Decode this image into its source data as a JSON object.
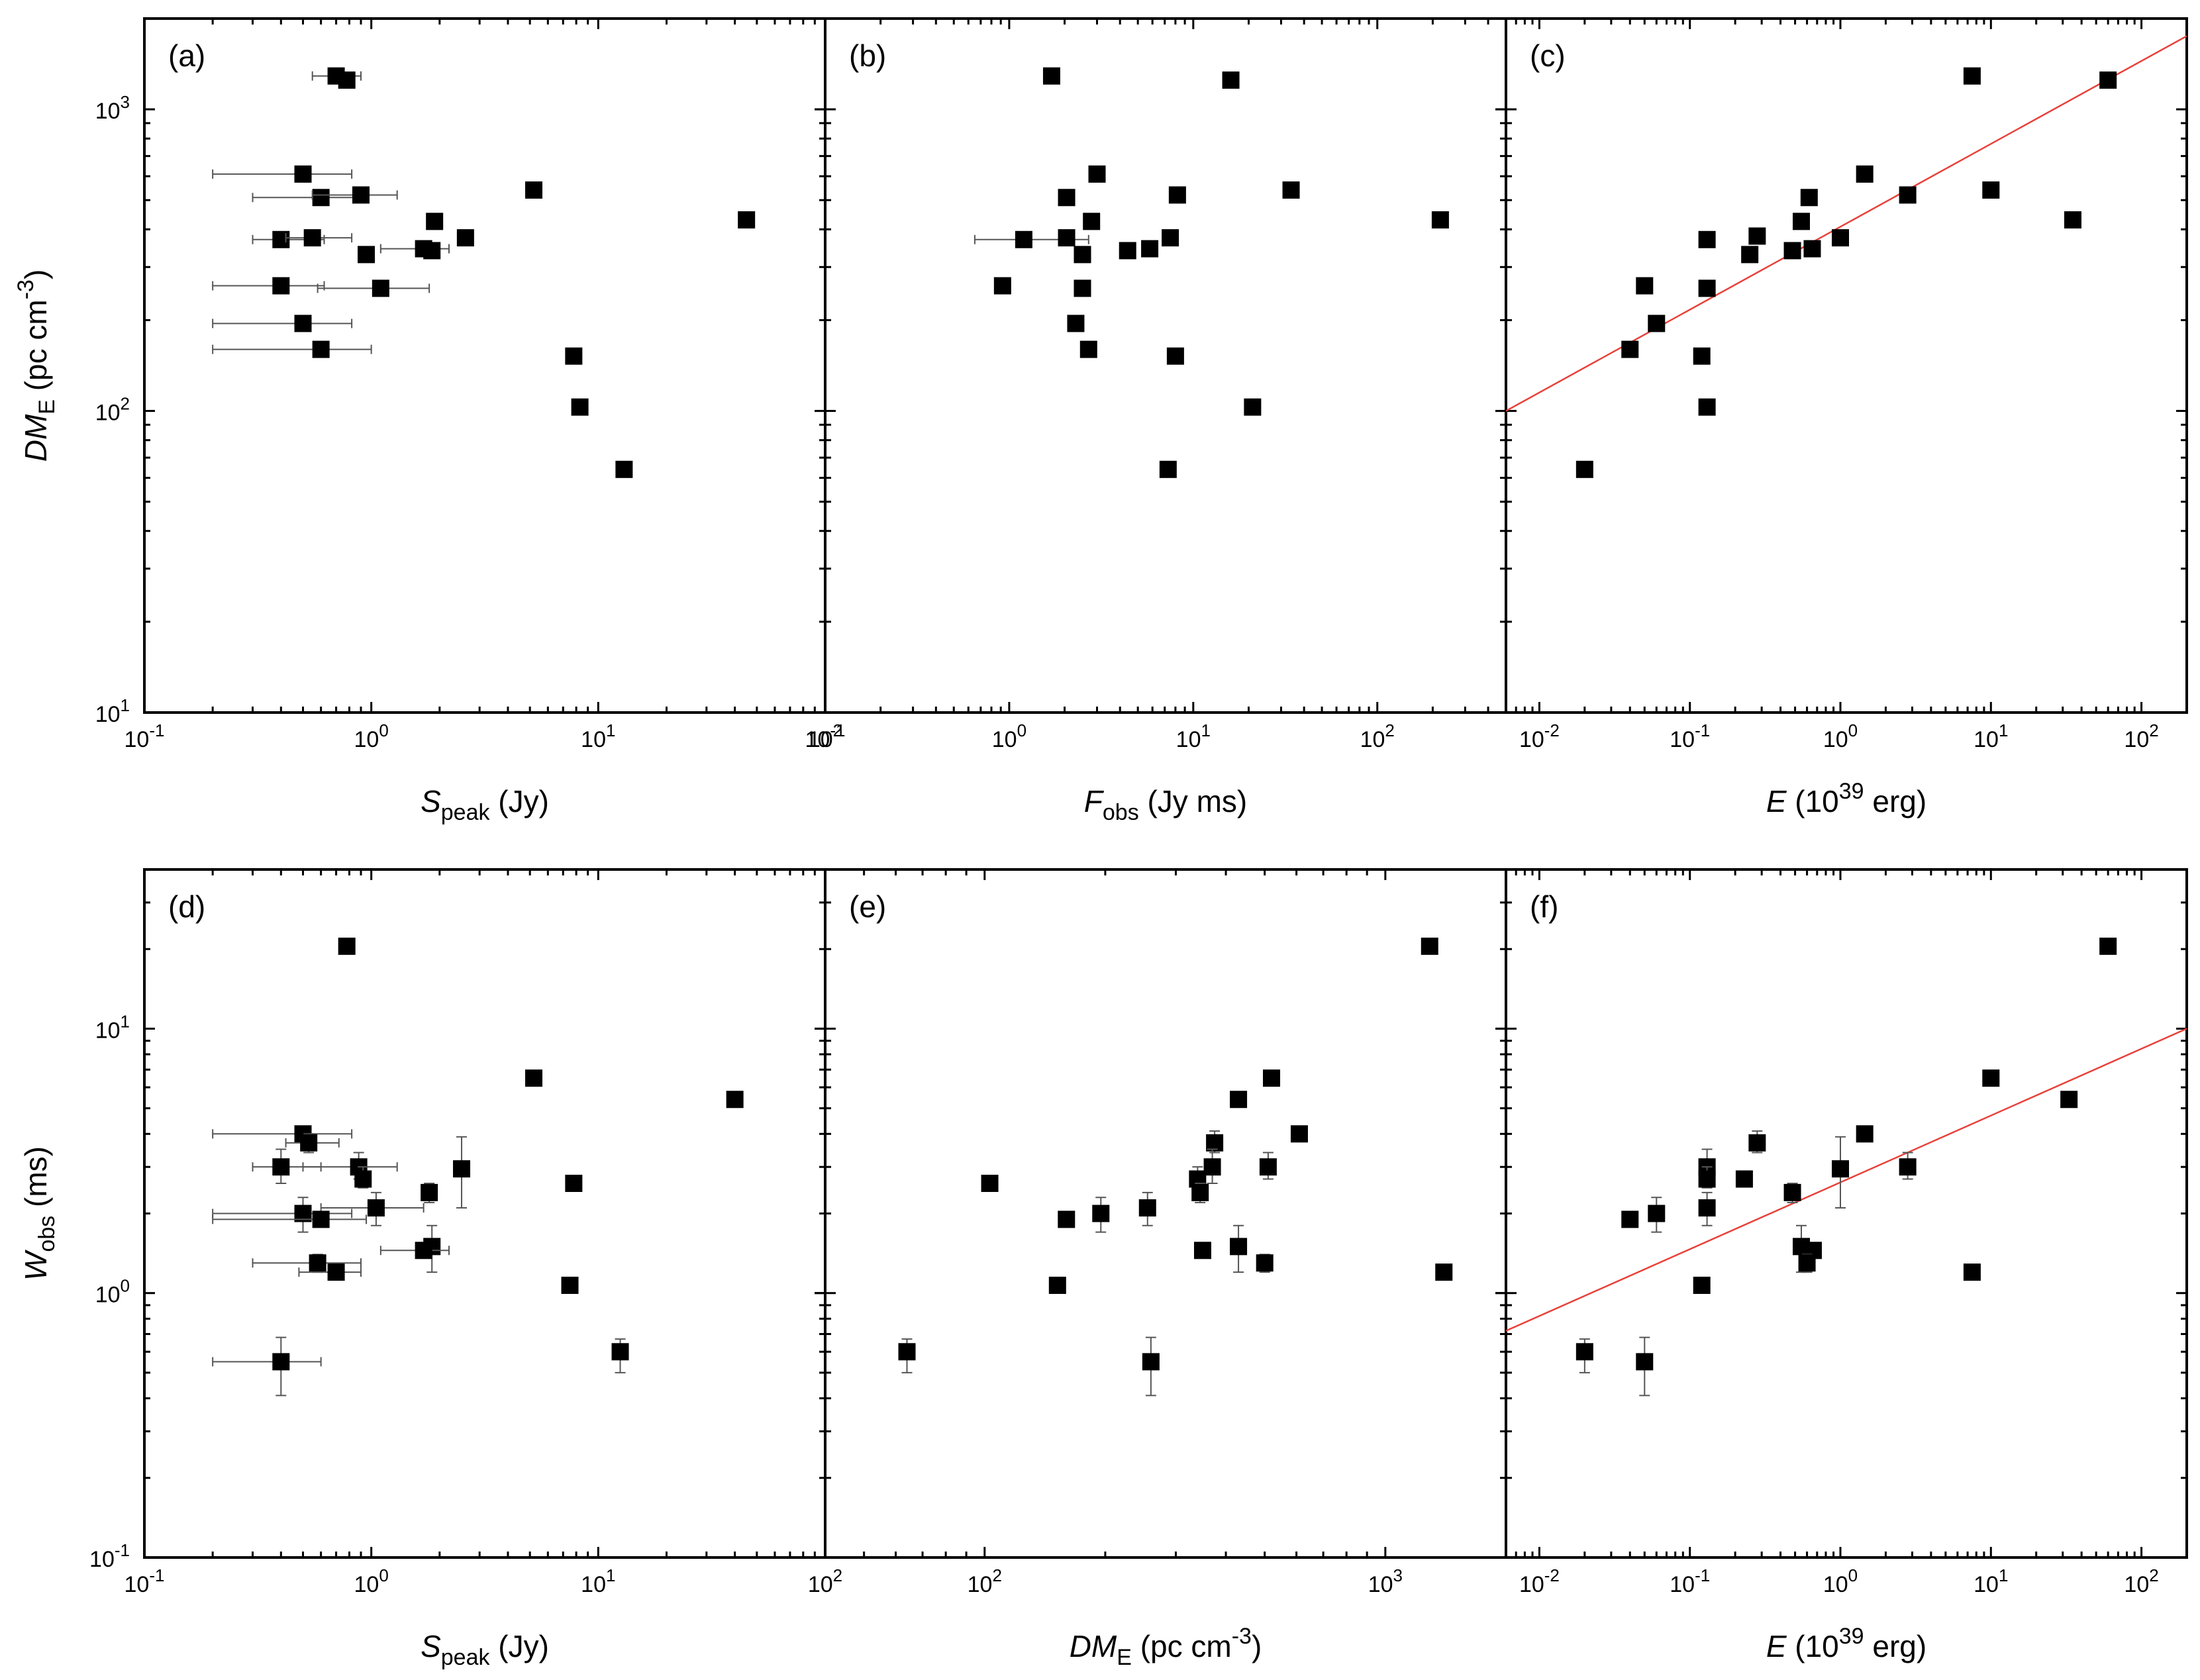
{
  "chart_data": [
    {
      "id": "a",
      "panel_label": "(a)",
      "type": "scatter",
      "xscale": "log",
      "yscale": "log",
      "xlim": [
        0.1,
        100
      ],
      "ylim": [
        10,
        2000
      ],
      "xlabel": {
        "sym": "S",
        "sub": "peak",
        "unit": " (Jy)"
      },
      "ylabel": {
        "sym": "DM",
        "sub": "E",
        "unit": " (pc cm",
        "sup": "-3",
        "close": ")"
      },
      "xticks": [
        {
          "b": "10",
          "e": "-1"
        },
        {
          "b": "10",
          "e": "0"
        },
        {
          "b": "10",
          "e": "1"
        },
        {
          "b": "10",
          "e": "2"
        }
      ],
      "yticks": [
        {
          "b": "10",
          "e": "1"
        },
        {
          "b": "10",
          "e": "2"
        },
        {
          "b": "10",
          "e": "3"
        }
      ],
      "points": [
        {
          "x": 0.7,
          "y": 1290,
          "xerr": [
            0.55,
            0.9
          ]
        },
        {
          "x": 0.78,
          "y": 1250
        },
        {
          "x": 0.5,
          "y": 610,
          "xerr": [
            0.2,
            0.82
          ]
        },
        {
          "x": 0.6,
          "y": 510,
          "xerr": [
            0.3,
            0.9
          ]
        },
        {
          "x": 0.9,
          "y": 520,
          "xerr": [
            0.55,
            1.3
          ]
        },
        {
          "x": 5.2,
          "y": 540
        },
        {
          "x": 1.9,
          "y": 425
        },
        {
          "x": 45,
          "y": 430
        },
        {
          "x": 0.4,
          "y": 370,
          "xerr": [
            0.3,
            0.62
          ]
        },
        {
          "x": 0.55,
          "y": 375,
          "xerr": [
            0.42,
            0.82
          ]
        },
        {
          "x": 2.6,
          "y": 375
        },
        {
          "x": 1.7,
          "y": 345,
          "xerr": [
            1.1,
            2.2
          ]
        },
        {
          "x": 1.85,
          "y": 340
        },
        {
          "x": 0.95,
          "y": 330
        },
        {
          "x": 0.4,
          "y": 260,
          "xerr": [
            0.2,
            0.62
          ]
        },
        {
          "x": 1.1,
          "y": 255,
          "xerr": [
            0.58,
            1.8
          ]
        },
        {
          "x": 0.5,
          "y": 195,
          "xerr": [
            0.2,
            0.82
          ]
        },
        {
          "x": 0.6,
          "y": 160,
          "xerr": [
            0.2,
            1.0
          ]
        },
        {
          "x": 7.8,
          "y": 152
        },
        {
          "x": 8.3,
          "y": 103
        },
        {
          "x": 13,
          "y": 64
        }
      ]
    },
    {
      "id": "b",
      "panel_label": "(b)",
      "type": "scatter",
      "xscale": "log",
      "yscale": "log",
      "xlim": [
        0.1,
        500
      ],
      "ylim": [
        10,
        2000
      ],
      "xlabel": {
        "sym": "F",
        "sub": "obs",
        "unit": " (Jy ms)"
      },
      "xticks": [
        {
          "b": "10",
          "e": "-1"
        },
        {
          "b": "10",
          "e": "0"
        },
        {
          "b": "10",
          "e": "1"
        },
        {
          "b": "10",
          "e": "2"
        }
      ],
      "points": [
        {
          "x": 1.7,
          "y": 1290
        },
        {
          "x": 16,
          "y": 1250
        },
        {
          "x": 3,
          "y": 610
        },
        {
          "x": 2.05,
          "y": 510
        },
        {
          "x": 8.2,
          "y": 520
        },
        {
          "x": 34,
          "y": 540
        },
        {
          "x": 2.8,
          "y": 425
        },
        {
          "x": 220,
          "y": 430
        },
        {
          "x": 1.2,
          "y": 370,
          "xerr": [
            0.65,
            2.7
          ]
        },
        {
          "x": 2.05,
          "y": 375
        },
        {
          "x": 7.5,
          "y": 375
        },
        {
          "x": 5.8,
          "y": 345
        },
        {
          "x": 4.4,
          "y": 340
        },
        {
          "x": 2.5,
          "y": 330
        },
        {
          "x": 0.92,
          "y": 260
        },
        {
          "x": 2.5,
          "y": 255
        },
        {
          "x": 2.3,
          "y": 195
        },
        {
          "x": 2.7,
          "y": 160
        },
        {
          "x": 8,
          "y": 152
        },
        {
          "x": 21,
          "y": 103
        },
        {
          "x": 7.3,
          "y": 64
        }
      ]
    },
    {
      "id": "c",
      "panel_label": "(c)",
      "type": "scatter",
      "xscale": "log",
      "yscale": "log",
      "xlim": [
        0.006,
        200
      ],
      "ylim": [
        10,
        2000
      ],
      "xlabel": {
        "sym": "E",
        "sub": "",
        "unit": " (10",
        "sup": "39",
        "close": " erg)"
      },
      "xticks": [
        {
          "b": "10",
          "e": "-2"
        },
        {
          "b": "10",
          "e": "-1"
        },
        {
          "b": "10",
          "e": "0"
        },
        {
          "b": "10",
          "e": "1"
        },
        {
          "b": "10",
          "e": "2"
        }
      ],
      "fit": {
        "x0": 0.006,
        "y0": 100,
        "x1": 200,
        "y1": 1750
      },
      "points": [
        {
          "x": 7.5,
          "y": 1290
        },
        {
          "x": 60,
          "y": 1250
        },
        {
          "x": 1.45,
          "y": 610
        },
        {
          "x": 0.62,
          "y": 510
        },
        {
          "x": 2.8,
          "y": 520
        },
        {
          "x": 10,
          "y": 540
        },
        {
          "x": 0.55,
          "y": 425
        },
        {
          "x": 35,
          "y": 430
        },
        {
          "x": 0.13,
          "y": 370
        },
        {
          "x": 0.28,
          "y": 380
        },
        {
          "x": 1.0,
          "y": 375
        },
        {
          "x": 0.65,
          "y": 345
        },
        {
          "x": 0.48,
          "y": 340
        },
        {
          "x": 0.25,
          "y": 330
        },
        {
          "x": 0.05,
          "y": 260
        },
        {
          "x": 0.13,
          "y": 255
        },
        {
          "x": 0.06,
          "y": 195
        },
        {
          "x": 0.04,
          "y": 160
        },
        {
          "x": 0.12,
          "y": 152
        },
        {
          "x": 0.13,
          "y": 103
        },
        {
          "x": 0.02,
          "y": 64
        }
      ]
    },
    {
      "id": "d",
      "panel_label": "(d)",
      "type": "scatter",
      "xscale": "log",
      "yscale": "log",
      "xlim": [
        0.1,
        100
      ],
      "ylim": [
        0.1,
        40
      ],
      "xlabel": {
        "sym": "S",
        "sub": "peak",
        "unit": " (Jy)"
      },
      "ylabel": {
        "sym": "W",
        "sub": "obs",
        "unit": " (ms)"
      },
      "xticks": [
        {
          "b": "10",
          "e": "-1"
        },
        {
          "b": "10",
          "e": "0"
        },
        {
          "b": "10",
          "e": "1"
        },
        {
          "b": "10",
          "e": "2"
        }
      ],
      "yticks": [
        {
          "b": "10",
          "e": "-1"
        },
        {
          "b": "10",
          "e": "0"
        },
        {
          "b": "10",
          "e": "1"
        }
      ],
      "points": [
        {
          "x": 0.78,
          "y": 20.5,
          "yerr": [
            19.5,
            21.5
          ]
        },
        {
          "x": 5.2,
          "y": 6.5,
          "yerr": [
            6.2,
            6.9
          ]
        },
        {
          "x": 40,
          "y": 5.4
        },
        {
          "x": 0.5,
          "y": 4.0,
          "xerr": [
            0.2,
            0.82
          ]
        },
        {
          "x": 0.53,
          "y": 3.7,
          "xerr": [
            0.42,
            0.72
          ],
          "yerr": [
            3.4,
            4.0
          ]
        },
        {
          "x": 0.4,
          "y": 3.0,
          "xerr": [
            0.3,
            0.6
          ],
          "yerr": [
            2.6,
            3.5
          ]
        },
        {
          "x": 0.88,
          "y": 3.0,
          "xerr": [
            0.5,
            1.3
          ],
          "yerr": [
            2.7,
            3.4
          ]
        },
        {
          "x": 2.5,
          "y": 2.95,
          "yerr": [
            2.1,
            3.9
          ]
        },
        {
          "x": 0.92,
          "y": 2.7,
          "yerr": [
            2.5,
            3.0
          ]
        },
        {
          "x": 7.8,
          "y": 2.6,
          "yerr": [
            2.5,
            2.75
          ]
        },
        {
          "x": 1.8,
          "y": 2.4,
          "yerr": [
            2.2,
            2.6
          ]
        },
        {
          "x": 1.05,
          "y": 2.1,
          "xerr": [
            0.6,
            1.7
          ],
          "yerr": [
            1.8,
            2.4
          ]
        },
        {
          "x": 0.5,
          "y": 2.0,
          "xerr": [
            0.2,
            0.82
          ],
          "yerr": [
            1.7,
            2.3
          ]
        },
        {
          "x": 0.6,
          "y": 1.9,
          "xerr": [
            0.2,
            0.95
          ]
        },
        {
          "x": 1.85,
          "y": 1.5,
          "yerr": [
            1.2,
            1.8
          ]
        },
        {
          "x": 1.7,
          "y": 1.45,
          "xerr": [
            1.1,
            2.2
          ]
        },
        {
          "x": 0.58,
          "y": 1.3,
          "xerr": [
            0.3,
            0.9
          ],
          "yerr": [
            1.2,
            1.4
          ]
        },
        {
          "x": 0.7,
          "y": 1.2,
          "xerr": [
            0.48,
            0.9
          ]
        },
        {
          "x": 7.5,
          "y": 1.07
        },
        {
          "x": 12.5,
          "y": 0.6,
          "yerr": [
            0.5,
            0.67
          ]
        },
        {
          "x": 0.4,
          "y": 0.55,
          "xerr": [
            0.2,
            0.6
          ],
          "yerr": [
            0.41,
            0.68
          ]
        }
      ]
    },
    {
      "id": "e",
      "panel_label": "(e)",
      "type": "scatter",
      "xscale": "log",
      "yscale": "log",
      "xlim": [
        40,
        2000
      ],
      "ylim": [
        0.1,
        40
      ],
      "xlabel": {
        "sym": "DM",
        "sub": "E",
        "unit": " (pc cm",
        "sup": "-3",
        "close": ")"
      },
      "xticks": [
        {
          "b": "10",
          "e": "2"
        },
        {
          "b": "10",
          "e": "3"
        }
      ],
      "points": [
        {
          "x": 1290,
          "y": 20.5,
          "yerr": [
            19.5,
            21.5
          ]
        },
        {
          "x": 520,
          "y": 6.5,
          "yerr": [
            6.2,
            6.9
          ]
        },
        {
          "x": 430,
          "y": 5.4
        },
        {
          "x": 610,
          "y": 4.0
        },
        {
          "x": 375,
          "y": 3.7,
          "yerr": [
            3.4,
            4.1
          ]
        },
        {
          "x": 370,
          "y": 3.0,
          "yerr": [
            2.6,
            3.5
          ]
        },
        {
          "x": 510,
          "y": 3.0,
          "yerr": [
            2.7,
            3.4
          ]
        },
        {
          "x": 340,
          "y": 2.7,
          "yerr": [
            2.5,
            3.0
          ]
        },
        {
          "x": 103,
          "y": 2.6,
          "yerr": [
            2.5,
            2.75
          ]
        },
        {
          "x": 345,
          "y": 2.4,
          "yerr": [
            2.2,
            2.6
          ]
        },
        {
          "x": 255,
          "y": 2.1,
          "yerr": [
            1.8,
            2.4
          ]
        },
        {
          "x": 195,
          "y": 2.0,
          "yerr": [
            1.7,
            2.3
          ]
        },
        {
          "x": 160,
          "y": 1.9
        },
        {
          "x": 430,
          "y": 1.5,
          "yerr": [
            1.2,
            1.8
          ]
        },
        {
          "x": 350,
          "y": 1.45
        },
        {
          "x": 500,
          "y": 1.3,
          "yerr": [
            1.2,
            1.4
          ]
        },
        {
          "x": 1400,
          "y": 1.2
        },
        {
          "x": 152,
          "y": 1.07
        },
        {
          "x": 64,
          "y": 0.6,
          "yerr": [
            0.5,
            0.67
          ]
        },
        {
          "x": 260,
          "y": 0.55,
          "yerr": [
            0.41,
            0.68
          ]
        }
      ]
    },
    {
      "id": "f",
      "panel_label": "(f)",
      "type": "scatter",
      "xscale": "log",
      "yscale": "log",
      "xlim": [
        0.006,
        200
      ],
      "ylim": [
        0.1,
        40
      ],
      "xlabel": {
        "sym": "E",
        "sub": "",
        "unit": " (10",
        "sup": "39",
        "close": " erg)"
      },
      "xticks": [
        {
          "b": "10",
          "e": "-2"
        },
        {
          "b": "10",
          "e": "-1"
        },
        {
          "b": "10",
          "e": "0"
        },
        {
          "b": "10",
          "e": "1"
        },
        {
          "b": "10",
          "e": "2"
        }
      ],
      "fit": {
        "x0": 0.006,
        "y0": 0.72,
        "x1": 200,
        "y1": 10
      },
      "points": [
        {
          "x": 60,
          "y": 20.5,
          "yerr": [
            19.5,
            21.5
          ]
        },
        {
          "x": 10,
          "y": 6.5,
          "yerr": [
            6.2,
            6.9
          ]
        },
        {
          "x": 33,
          "y": 5.4
        },
        {
          "x": 1.45,
          "y": 4.0
        },
        {
          "x": 0.28,
          "y": 3.7,
          "yerr": [
            3.4,
            4.1
          ]
        },
        {
          "x": 0.13,
          "y": 3.0,
          "yerr": [
            2.6,
            3.5
          ]
        },
        {
          "x": 1.0,
          "y": 2.95,
          "yerr": [
            2.1,
            3.9
          ]
        },
        {
          "x": 2.8,
          "y": 3.0,
          "yerr": [
            2.7,
            3.4
          ]
        },
        {
          "x": 0.13,
          "y": 2.7,
          "yerr": [
            2.5,
            3.0
          ]
        },
        {
          "x": 0.23,
          "y": 2.7
        },
        {
          "x": 0.48,
          "y": 2.4,
          "yerr": [
            2.2,
            2.6
          ]
        },
        {
          "x": 0.13,
          "y": 2.1,
          "yerr": [
            1.8,
            2.4
          ]
        },
        {
          "x": 0.06,
          "y": 2.0,
          "yerr": [
            1.7,
            2.3
          ]
        },
        {
          "x": 0.04,
          "y": 1.9
        },
        {
          "x": 0.55,
          "y": 1.5,
          "yerr": [
            1.2,
            1.8
          ]
        },
        {
          "x": 0.66,
          "y": 1.45
        },
        {
          "x": 0.6,
          "y": 1.3,
          "yerr": [
            1.2,
            1.4
          ]
        },
        {
          "x": 7.5,
          "y": 1.2
        },
        {
          "x": 0.12,
          "y": 1.07
        },
        {
          "x": 0.02,
          "y": 0.6,
          "yerr": [
            0.5,
            0.67
          ]
        },
        {
          "x": 0.05,
          "y": 0.55,
          "yerr": [
            0.41,
            0.68
          ]
        }
      ]
    }
  ]
}
